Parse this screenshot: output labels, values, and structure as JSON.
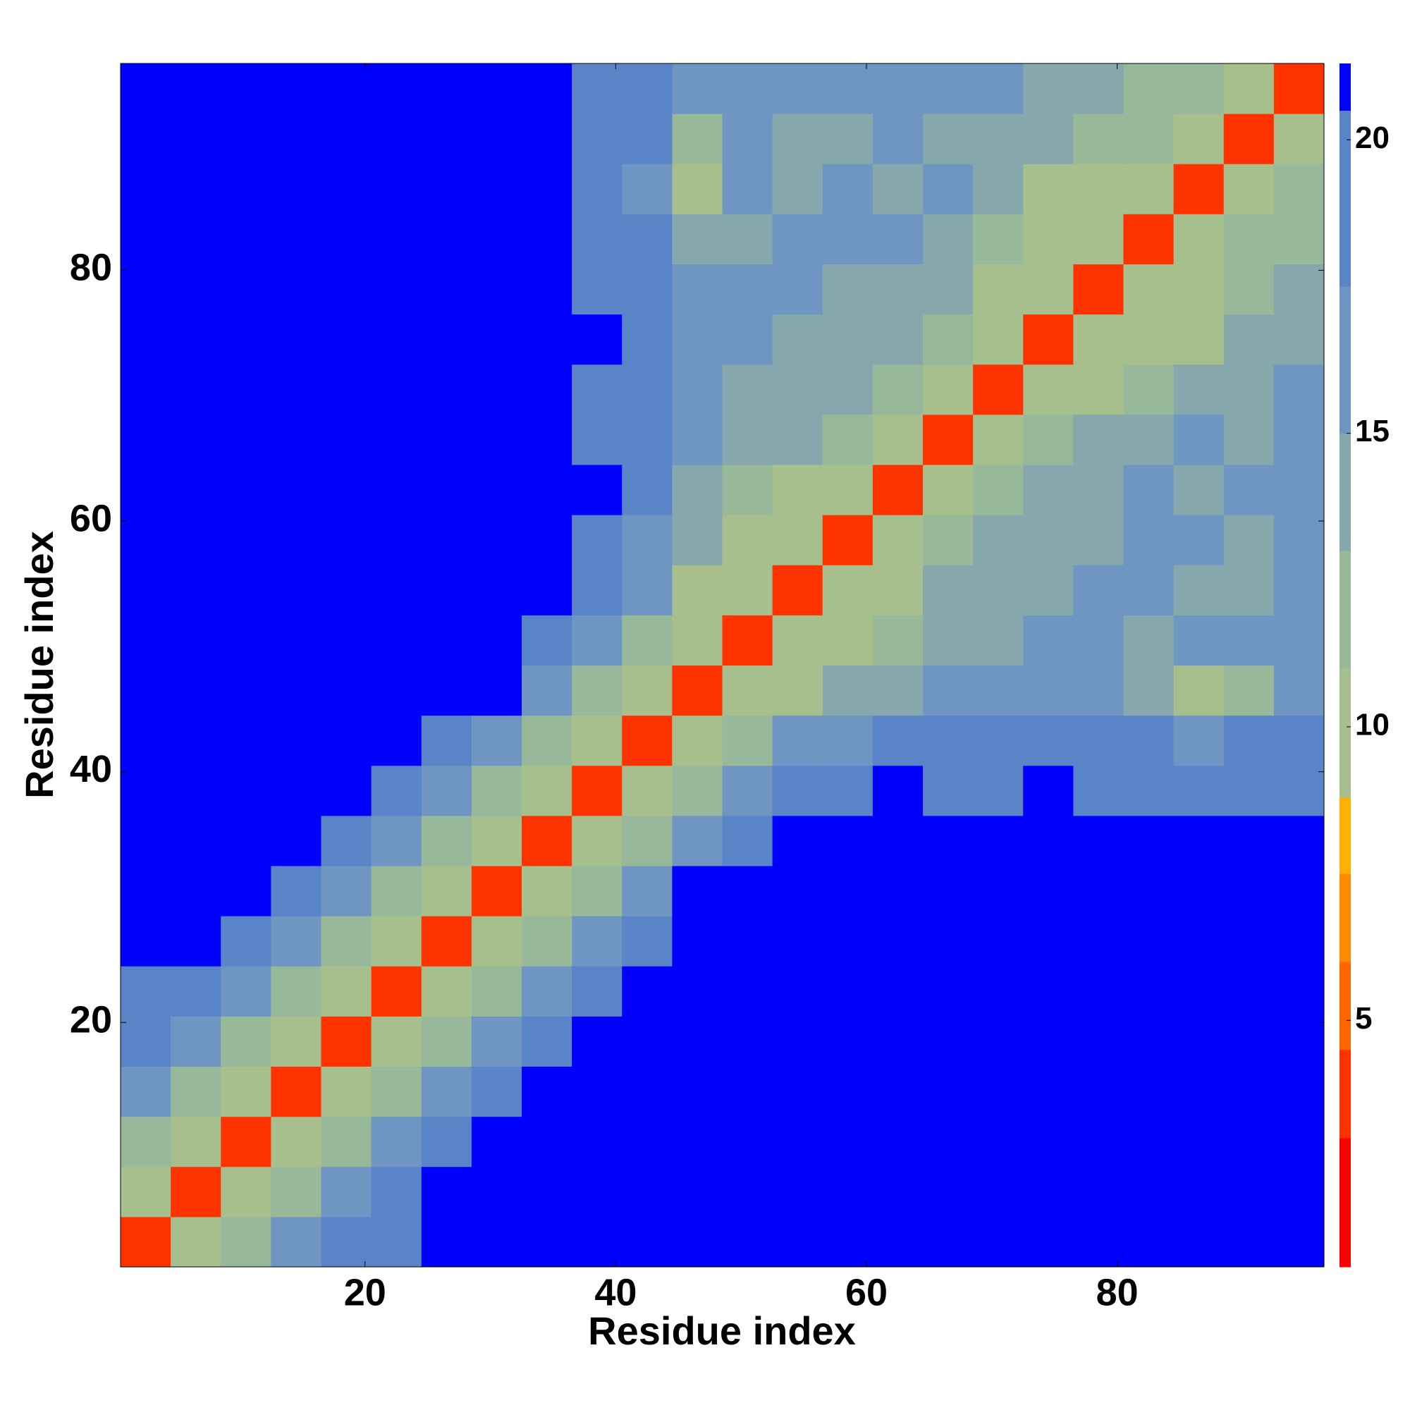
{
  "chart_data": {
    "type": "heatmap",
    "xlabel": "Residue index",
    "ylabel": "Residue index",
    "x_bins": [
      0.5,
      4.5,
      8.5,
      12.5,
      16.5,
      20.5,
      24.5,
      28.5,
      32.5,
      36.5,
      40.5,
      44.5,
      48.5,
      52.5,
      56.5,
      60.5,
      64.5,
      68.5,
      72.5,
      76.5,
      80.5,
      84.5,
      88.5,
      92.5,
      96.5
    ],
    "y_bins": [
      0.5,
      4.5,
      8.5,
      12.5,
      16.5,
      20.5,
      24.5,
      28.5,
      32.5,
      36.5,
      40.5,
      44.5,
      48.5,
      52.5,
      56.5,
      60.5,
      64.5,
      68.5,
      72.5,
      76.5,
      80.5,
      84.5,
      88.5,
      92.5,
      96.5
    ],
    "values": [
      [
        4,
        9,
        13,
        17,
        18,
        19,
        21,
        21,
        21,
        21,
        21,
        21,
        21,
        21,
        21,
        21,
        21,
        21,
        21,
        21,
        21,
        21,
        21,
        21
      ],
      [
        9,
        4,
        9,
        13,
        16,
        18,
        21,
        21,
        21,
        21,
        21,
        21,
        21,
        21,
        21,
        21,
        21,
        21,
        21,
        21,
        21,
        21,
        21,
        21
      ],
      [
        13,
        9,
        4,
        9,
        13,
        16,
        19,
        21,
        21,
        21,
        21,
        21,
        21,
        21,
        21,
        21,
        21,
        21,
        21,
        21,
        21,
        21,
        21,
        21
      ],
      [
        17,
        13,
        9,
        4,
        9,
        13,
        16,
        19,
        21,
        21,
        21,
        21,
        21,
        21,
        21,
        21,
        21,
        21,
        21,
        21,
        21,
        21,
        21,
        21
      ],
      [
        18,
        16,
        13,
        9,
        4,
        9,
        13,
        16,
        19,
        21,
        21,
        21,
        21,
        21,
        21,
        21,
        21,
        21,
        21,
        21,
        21,
        21,
        21,
        21
      ],
      [
        19,
        18,
        16,
        13,
        9,
        4,
        9,
        13,
        16,
        19,
        21,
        21,
        21,
        21,
        21,
        21,
        21,
        21,
        21,
        21,
        21,
        21,
        21,
        21
      ],
      [
        21,
        21,
        19,
        16,
        13,
        9,
        4,
        9,
        13,
        16,
        19,
        21,
        21,
        21,
        21,
        21,
        21,
        21,
        21,
        21,
        21,
        21,
        21,
        21
      ],
      [
        21,
        21,
        21,
        19,
        16,
        13,
        9,
        4,
        9,
        13,
        16,
        21,
        21,
        21,
        21,
        21,
        21,
        21,
        21,
        21,
        21,
        21,
        21,
        21
      ],
      [
        21,
        21,
        21,
        21,
        19,
        16,
        13,
        9,
        4,
        9,
        13,
        16,
        20,
        21,
        21,
        21,
        21,
        21,
        21,
        21,
        21,
        21,
        21,
        21
      ],
      [
        21,
        21,
        21,
        21,
        21,
        19,
        16,
        13,
        9,
        4,
        9,
        13,
        17,
        20,
        20,
        21,
        20,
        20,
        21,
        20,
        19,
        19,
        20,
        20
      ],
      [
        21,
        21,
        21,
        21,
        21,
        21,
        19,
        16,
        13,
        9,
        4,
        9,
        13,
        16,
        17,
        18,
        18,
        19,
        19,
        18,
        18,
        17,
        18,
        20
      ],
      [
        21,
        21,
        21,
        21,
        21,
        21,
        21,
        21,
        16,
        13,
        9,
        4,
        9,
        11,
        14,
        15,
        16,
        16,
        17,
        16,
        15,
        11,
        13,
        17
      ],
      [
        21,
        21,
        21,
        21,
        21,
        21,
        21,
        21,
        20,
        17,
        13,
        9,
        4,
        9,
        11,
        12,
        14,
        15,
        16,
        16,
        15,
        16,
        17,
        16
      ],
      [
        21,
        21,
        21,
        21,
        21,
        21,
        21,
        21,
        21,
        20,
        16,
        11,
        9,
        4,
        9,
        11,
        14,
        15,
        15,
        16,
        17,
        15,
        14,
        16
      ],
      [
        21,
        21,
        21,
        21,
        21,
        21,
        21,
        21,
        21,
        20,
        17,
        14,
        11,
        9,
        4,
        9,
        12,
        14,
        14,
        15,
        17,
        16,
        15,
        16
      ],
      [
        21,
        21,
        21,
        21,
        21,
        21,
        21,
        21,
        21,
        21,
        18,
        15,
        12,
        11,
        9,
        4,
        9,
        12,
        14,
        15,
        16,
        15,
        16,
        17
      ],
      [
        21,
        21,
        21,
        21,
        21,
        21,
        21,
        21,
        21,
        20,
        18,
        16,
        14,
        14,
        12,
        9,
        4,
        9,
        12,
        14,
        15,
        16,
        15,
        16
      ],
      [
        21,
        21,
        21,
        21,
        21,
        21,
        21,
        21,
        21,
        20,
        19,
        16,
        15,
        15,
        14,
        12,
        9,
        4,
        9,
        11,
        13,
        15,
        14,
        16
      ],
      [
        21,
        21,
        21,
        21,
        21,
        21,
        21,
        21,
        21,
        21,
        19,
        17,
        16,
        15,
        14,
        14,
        12,
        9,
        4,
        9,
        10,
        11,
        14,
        15
      ],
      [
        21,
        21,
        21,
        21,
        21,
        21,
        21,
        21,
        21,
        20,
        18,
        16,
        16,
        16,
        15,
        15,
        14,
        11,
        9,
        4,
        9,
        10,
        13,
        14
      ],
      [
        21,
        21,
        21,
        21,
        21,
        21,
        21,
        21,
        21,
        19,
        18,
        15,
        15,
        17,
        17,
        16,
        15,
        13,
        10,
        9,
        4,
        9,
        12,
        13
      ],
      [
        21,
        21,
        21,
        21,
        21,
        21,
        21,
        21,
        21,
        19,
        17,
        11,
        16,
        15,
        16,
        15,
        16,
        15,
        11,
        10,
        9,
        4,
        9,
        12
      ],
      [
        21,
        21,
        21,
        21,
        21,
        21,
        21,
        21,
        21,
        20,
        18,
        13,
        17,
        14,
        15,
        16,
        15,
        14,
        14,
        13,
        12,
        9,
        4,
        9
      ],
      [
        21,
        21,
        21,
        21,
        21,
        21,
        21,
        21,
        21,
        20,
        20,
        17,
        16,
        16,
        16,
        17,
        16,
        16,
        15,
        14,
        13,
        12,
        9,
        4
      ]
    ],
    "xlim": [
      0.5,
      96.5
    ],
    "ylim": [
      0.5,
      96.5
    ],
    "xticks": [
      20,
      40,
      60,
      80
    ],
    "yticks": [
      20,
      40,
      60,
      80
    ],
    "color_bounds": [
      0.8,
      3,
      4.5,
      6,
      7.5,
      8.8,
      11,
      13,
      15,
      17.5,
      20.5,
      21.3
    ],
    "colors": [
      "#ff0000",
      "#ff3300",
      "#ff6600",
      "#ff8c00",
      "#ffb000",
      "#a6bf8c",
      "#98b89a",
      "#86a8ac",
      "#6f95c2",
      "#5a84c8",
      "#0000ff"
    ],
    "cticks": [
      5,
      10,
      15,
      20
    ]
  }
}
